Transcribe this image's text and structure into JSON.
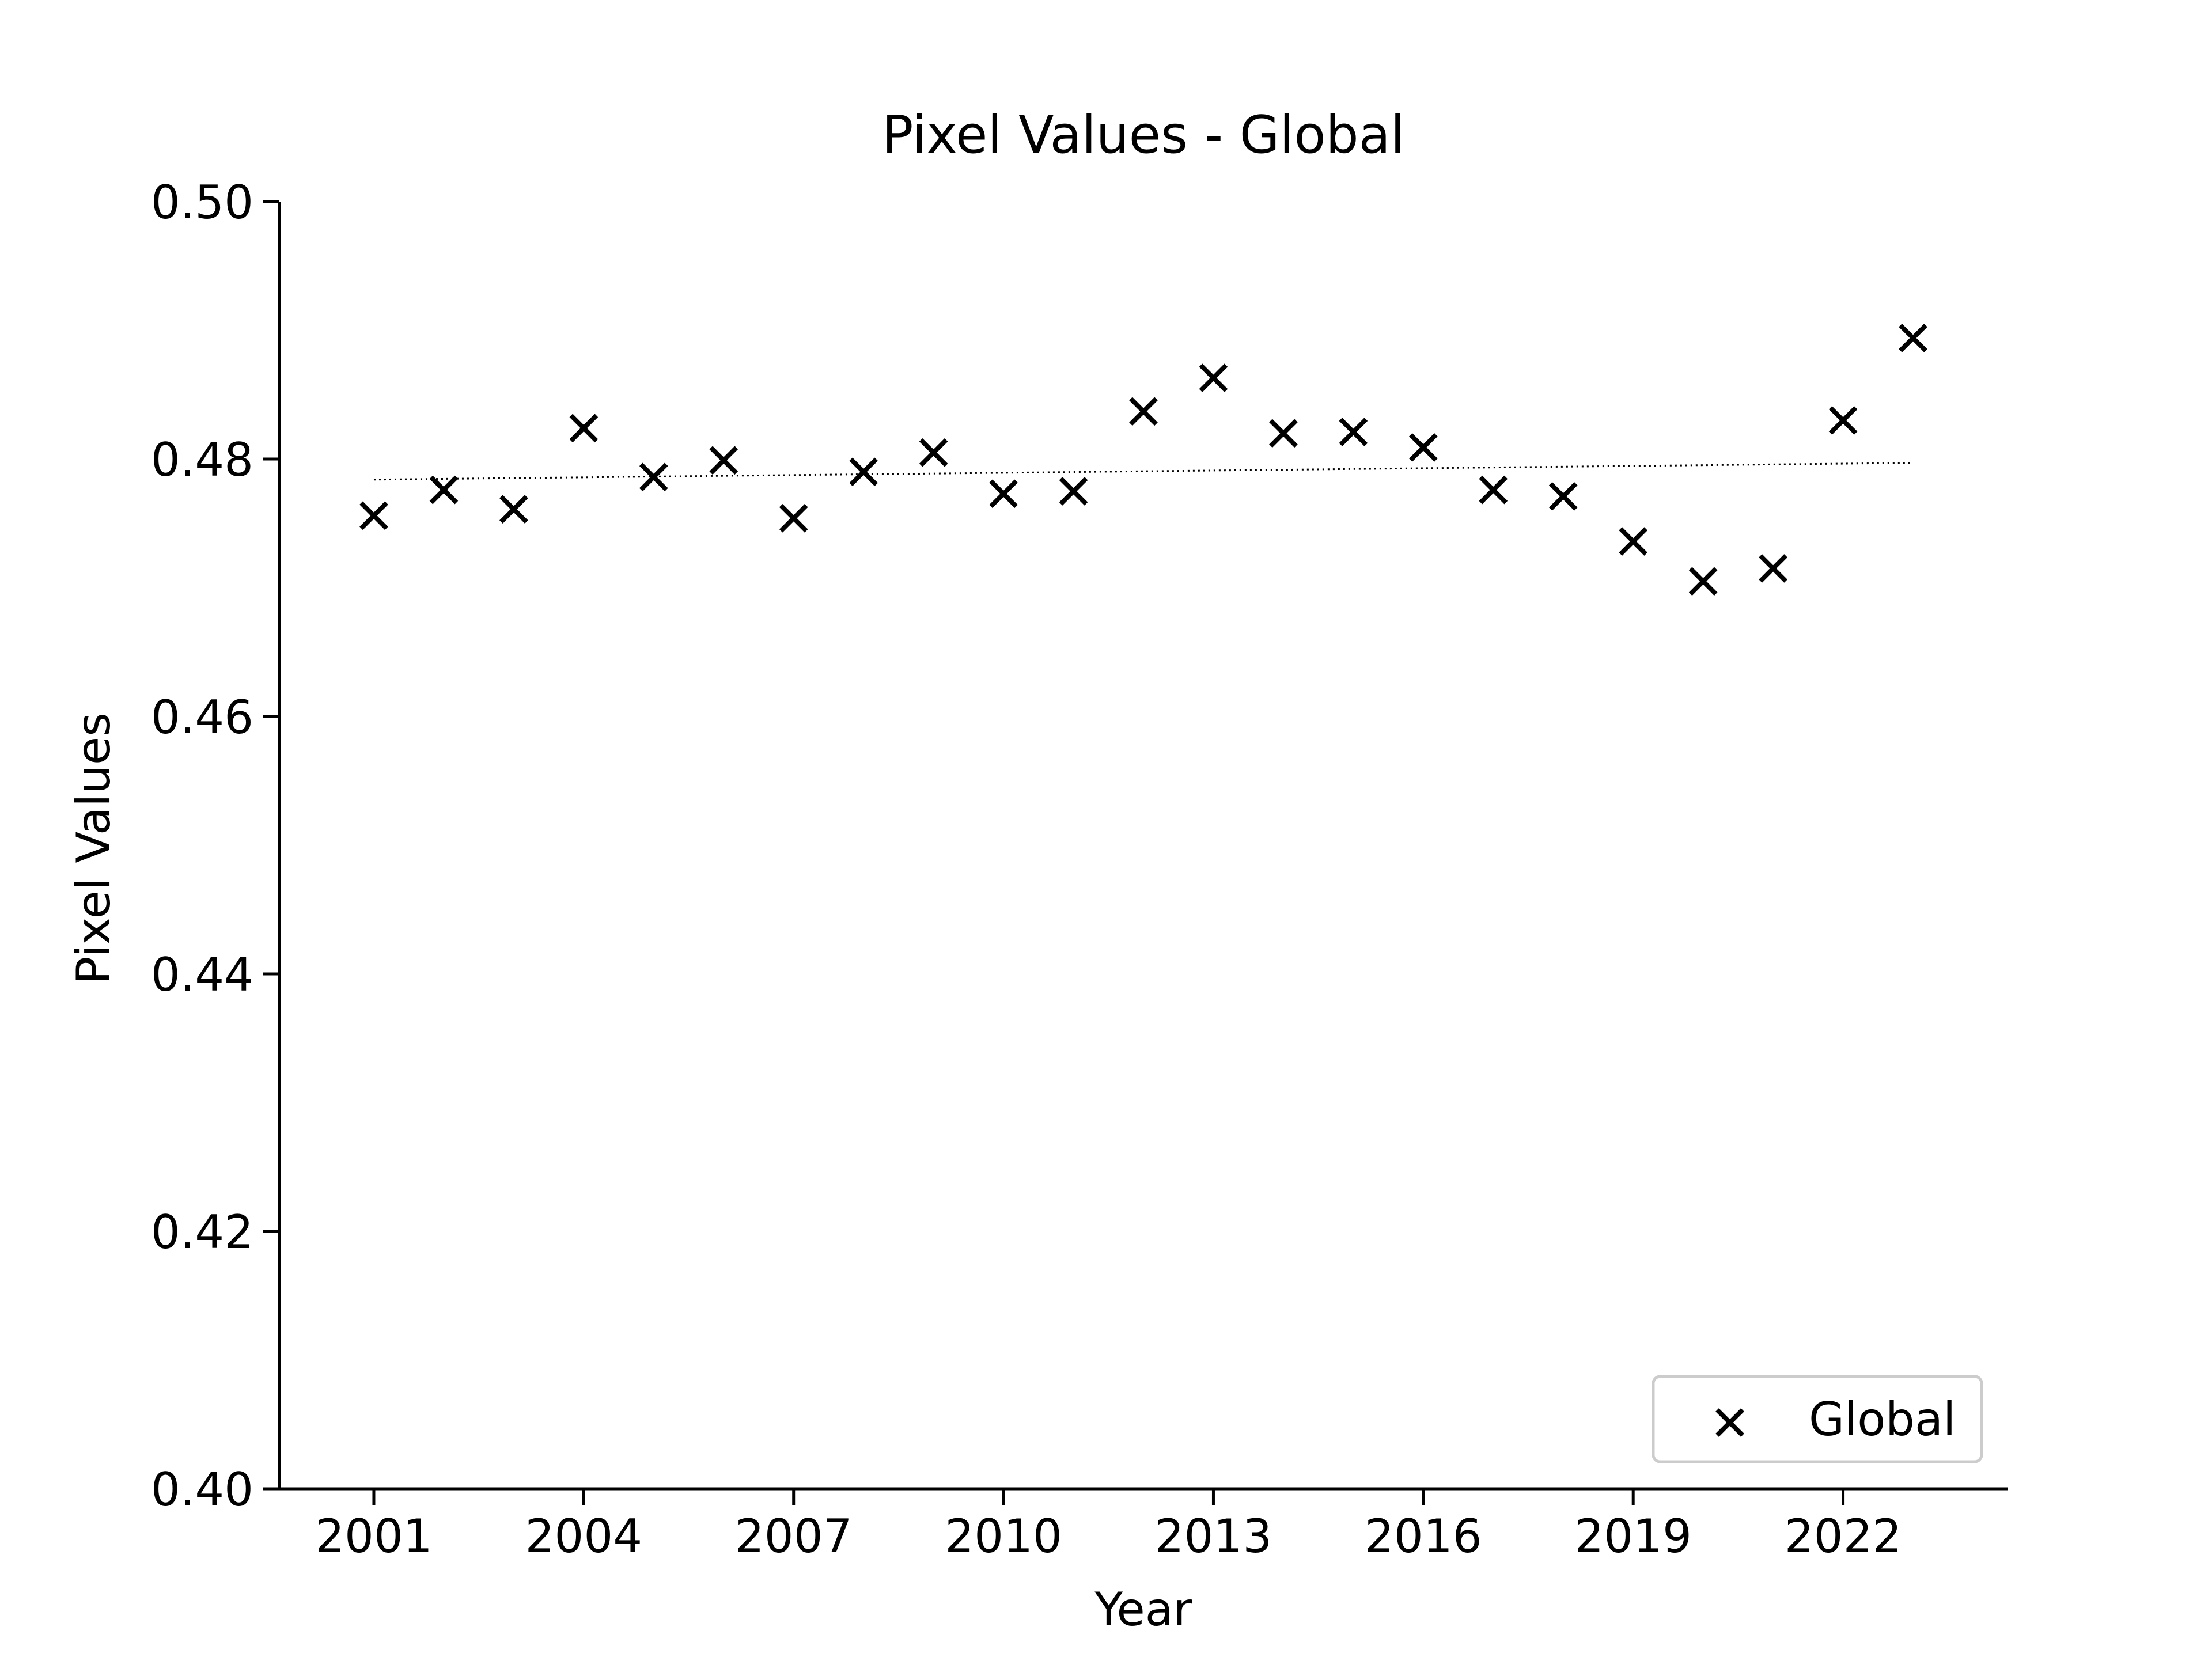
{
  "chart_data": {
    "type": "scatter",
    "title": "Pixel Values - Global",
    "xlabel": "Year",
    "ylabel": "Pixel Values",
    "xlim": [
      1999.65,
      2024.35
    ],
    "ylim": [
      0.4,
      0.5
    ],
    "x_ticks": [
      2001,
      2004,
      2007,
      2010,
      2013,
      2016,
      2019,
      2022
    ],
    "x_tick_labels": [
      "2001",
      "2004",
      "2007",
      "2010",
      "2013",
      "2016",
      "2019",
      "2022"
    ],
    "y_ticks": [
      0.4,
      0.42,
      0.44,
      0.46,
      0.48,
      0.5
    ],
    "y_tick_labels": [
      "0.40",
      "0.42",
      "0.44",
      "0.46",
      "0.48",
      "0.50"
    ],
    "grid": false,
    "legend_position": "lower-right",
    "marker": "x",
    "colors": {
      "marker": "#000000",
      "trendline": "#000000",
      "axis": "#000000",
      "legend_border": "#cccccc"
    },
    "series": [
      {
        "name": "Global",
        "x": [
          2001,
          2002,
          2003,
          2004,
          2005,
          2006,
          2007,
          2008,
          2009,
          2010,
          2011,
          2012,
          2013,
          2014,
          2015,
          2016,
          2017,
          2018,
          2019,
          2020,
          2021,
          2022,
          2023
        ],
        "y": [
          0.4756,
          0.4776,
          0.4761,
          0.4824,
          0.4786,
          0.4799,
          0.4754,
          0.479,
          0.4805,
          0.4773,
          0.4775,
          0.4837,
          0.4863,
          0.482,
          0.4821,
          0.4809,
          0.4776,
          0.4771,
          0.4736,
          0.4705,
          0.4715,
          0.483,
          0.4894
        ]
      }
    ],
    "trendline": {
      "style": "dotted",
      "x": [
        2001,
        2023
      ],
      "y": [
        0.4784,
        0.4797
      ]
    }
  }
}
